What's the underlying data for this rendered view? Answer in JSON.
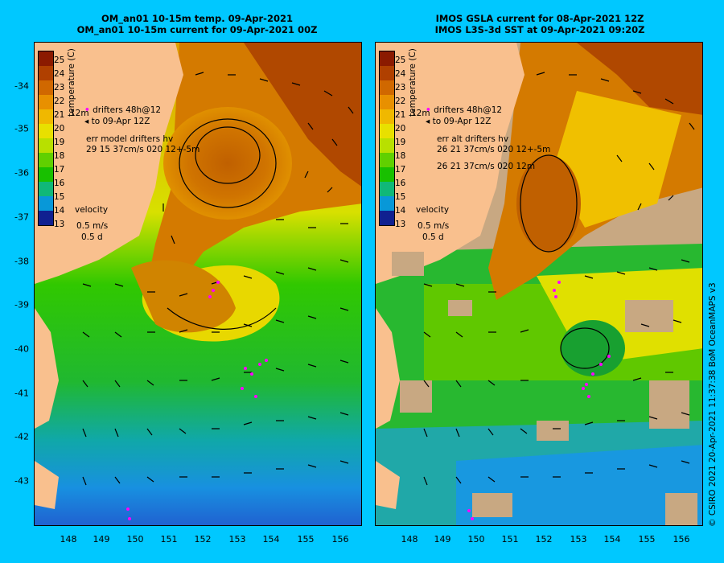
{
  "left_title": {
    "line1": "OM_an01 10-15m temp. 09-Apr-2021",
    "line2": "OM_an01 10-15m current for 09-Apr-2021 00Z"
  },
  "right_title": {
    "line1": "IMOS GSLA current for 08-Apr-2021 12Z",
    "line2": "IMOS L3S-3d SST at 09-Apr-2021 09:20Z"
  },
  "y_labels": [
    "-34",
    "-35",
    "-36",
    "-37",
    "-38",
    "-39",
    "-40",
    "-41",
    "-42",
    "-43"
  ],
  "x_labels": [
    "148",
    "149",
    "150",
    "151",
    "152",
    "153",
    "154",
    "155",
    "156"
  ],
  "colorbar": {
    "title": "temperature (C)",
    "ticks": [
      "25",
      "24",
      "23",
      "22",
      "21",
      "20",
      "19",
      "18",
      "17",
      "16",
      "15",
      "14",
      "13"
    ],
    "colors": [
      "#8b1a00",
      "#b04000",
      "#d06800",
      "#e89000",
      "#f0b800",
      "#e8e000",
      "#b8e000",
      "#60d000",
      "#18c000",
      "#10b878",
      "#0898d8",
      "#1058d0",
      "#102090"
    ]
  },
  "left_legend": {
    "drifters": "drifters 48h@12",
    "to": "to 09-Apr 12Z",
    "err_label": "err model drifters hv",
    "err_values": "29 15 37cm/s 020 12+-5m",
    "velocity": "velocity",
    "speed": "0.5 m/s",
    "time": "0.5 d",
    "depth": "12m"
  },
  "right_legend": {
    "drifters": "drifters 48h@12",
    "to": "to 09-Apr 12Z",
    "err_label": "err alt drifters hv",
    "err_values1": "26 21 37cm/s 020 12+-5m",
    "err_values2": "26 21 37cm/s 020 12m",
    "velocity": "velocity",
    "speed": "0.5 m/s",
    "time": "0.5 d",
    "depth": "12m"
  },
  "side_text": "© CSIRO 2021   20-Apr-2021 11:37:38 BoM OceanMAPS v3"
}
